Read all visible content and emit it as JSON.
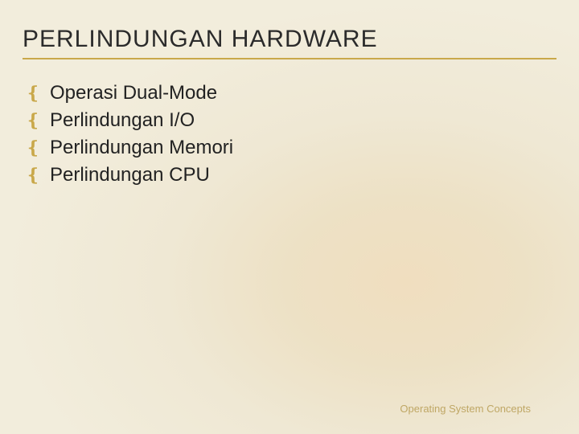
{
  "slide": {
    "title": "PERLINDUNGAN HARDWARE",
    "title_color": "#2b2b2b",
    "title_fontsize": 30,
    "title_underline_color": "#c9a84a",
    "background_gradient": {
      "center": "70% 65%",
      "stops": [
        "#f0debf",
        "#ede1c5",
        "#efe8d4",
        "#f2eddc"
      ]
    },
    "bullets": [
      {
        "text": "Operasi Dual-Mode"
      },
      {
        "text": "Perlindungan I/O"
      },
      {
        "text": "Perlindungan Memori"
      },
      {
        "text": "Perlindungan CPU"
      }
    ],
    "bullet_glyph": "❴",
    "bullet_color": "#c9a84a",
    "bullet_fontsize": 24,
    "bullet_text_color": "#222222",
    "footer": {
      "text": "Operating System Concepts",
      "color": "#bfa765",
      "fontsize": 13
    }
  }
}
